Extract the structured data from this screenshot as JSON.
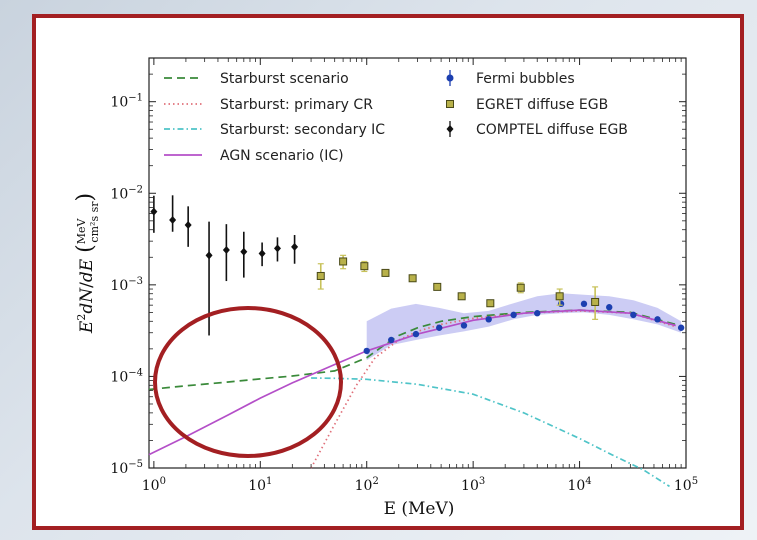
{
  "chart_data": {
    "type": "scatter",
    "xlabel": "E (MeV)",
    "ylabel": "E^2 dN/dE (MeV / cm^2 s sr)",
    "x_scale": "log",
    "y_scale": "log",
    "xlim": [
      0.9,
      100000
    ],
    "ylim": [
      1e-05,
      0.3
    ],
    "x_ticks": [
      "10^0",
      "10^1",
      "10^2",
      "10^3",
      "10^4",
      "10^5"
    ],
    "y_ticks": [
      "10^-5",
      "10^-4",
      "10^-3",
      "10^-2",
      "10^-1"
    ],
    "grid": false,
    "legend_position": "top",
    "series": [
      {
        "name": "Starburst scenario",
        "kind": "line",
        "style": "dashed",
        "color": "#3a8a3a",
        "x": [
          0.9,
          2,
          5,
          10,
          20,
          50,
          100,
          150,
          200,
          300,
          500,
          1000,
          3000,
          10000,
          30000,
          80000
        ],
        "y": [
          7.2e-05,
          7.9e-05,
          8.7e-05,
          9.4e-05,
          0.000101,
          0.000115,
          0.00016,
          0.000225,
          0.00028,
          0.00034,
          0.0004,
          0.00045,
          0.0005,
          0.00053,
          0.0005,
          0.00037
        ]
      },
      {
        "name": "Starburst: primary CR",
        "kind": "line",
        "style": "dotted",
        "color": "#e0707a",
        "x": [
          30,
          50,
          80,
          120,
          200,
          300,
          500,
          1000,
          3000,
          10000,
          30000,
          80000
        ],
        "y": [
          1e-05,
          3e-05,
          8e-05,
          0.00016,
          0.00025,
          0.00031,
          0.00037,
          0.00043,
          0.00049,
          0.00052,
          0.00049,
          0.00035
        ]
      },
      {
        "name": "Starburst: secondary IC",
        "kind": "line",
        "style": "dashdot",
        "color": "#4fc4c8",
        "x": [
          30,
          50,
          100,
          300,
          1000,
          3000,
          10000,
          20000,
          40000,
          70000
        ],
        "y": [
          9.6e-05,
          9.55e-05,
          9.3e-05,
          8.2e-05,
          6.4e-05,
          4e-05,
          2.1e-05,
          1.4e-05,
          9.5e-06,
          6.3e-06
        ]
      },
      {
        "name": "AGN scenario (IC)",
        "kind": "line",
        "style": "solid",
        "color": "#b44fc8",
        "x": [
          0.9,
          2,
          5,
          10,
          20,
          50,
          100,
          300,
          1000,
          3000,
          10000,
          30000,
          80000
        ],
        "y": [
          1.4e-05,
          2.2e-05,
          3.8e-05,
          5.8e-05,
          8.5e-05,
          0.000135,
          0.00019,
          0.00029,
          0.00041,
          0.00049,
          0.00053,
          0.00049,
          0.00036
        ]
      },
      {
        "name": "Fermi bubbles",
        "kind": "points",
        "marker": "circle",
        "color": "#1c3fb0",
        "x": [
          100,
          170,
          290,
          480,
          820,
          1400,
          2400,
          4000,
          6700,
          11000,
          19000,
          32000,
          54000,
          90000
        ],
        "y": [
          0.00019,
          0.00025,
          0.00029,
          0.00034,
          0.00036,
          0.00042,
          0.00047,
          0.00049,
          0.00062,
          0.00062,
          0.00057,
          0.00047,
          0.00042,
          0.00034
        ],
        "band_low": [
          0.00015,
          0.00022,
          0.00025,
          0.00028,
          0.00031,
          0.00035,
          0.00042,
          0.00047,
          0.00049,
          0.0005,
          0.00047,
          0.00042,
          0.00037,
          0.0003
        ],
        "band_high": [
          0.0004,
          0.00055,
          0.00062,
          0.00056,
          0.00049,
          0.00052,
          0.00063,
          0.00075,
          0.00081,
          0.00078,
          0.00075,
          0.00068,
          0.00056,
          0.0004
        ]
      },
      {
        "name": "EGRET diffuse EGB",
        "kind": "points",
        "marker": "square",
        "color": "#b8b14a",
        "x": [
          37,
          60,
          95,
          150,
          270,
          460,
          780,
          1450,
          2800,
          6500,
          14000
        ],
        "y": [
          0.00125,
          0.0018,
          0.0016,
          0.00135,
          0.00118,
          0.00095,
          0.00075,
          0.00063,
          0.00093,
          0.00075,
          0.00065
        ],
        "y_err_low": [
          0.0009,
          0.0015,
          0.0014,
          0.00125,
          0.0011,
          0.00088,
          0.0007,
          0.00058,
          0.00082,
          0.0006,
          0.00042
        ],
        "y_err_high": [
          0.0017,
          0.0021,
          0.0018,
          0.00145,
          0.00126,
          0.00102,
          0.0008,
          0.00068,
          0.00105,
          0.0009,
          0.00095
        ]
      },
      {
        "name": "COMPTEL diffuse EGB",
        "kind": "points",
        "marker": "diamond",
        "color": "#111111",
        "x": [
          1,
          1.5,
          2.1,
          3.3,
          4.8,
          7,
          10.4,
          14.5,
          21
        ],
        "y": [
          0.0063,
          0.0051,
          0.0045,
          0.0021,
          0.0024,
          0.0023,
          0.0022,
          0.0025,
          0.0026
        ],
        "y_err_low": [
          0.0037,
          0.0038,
          0.0026,
          0.00028,
          0.0011,
          0.0012,
          0.0016,
          0.0018,
          0.0017
        ],
        "y_err_high": [
          0.0094,
          0.0095,
          0.0072,
          0.0049,
          0.0046,
          0.0038,
          0.0029,
          0.0033,
          0.0035
        ]
      }
    ],
    "annotations": [
      {
        "type": "ellipse",
        "color": "#a31f22",
        "x_center": 6,
        "y_center": 9.5e-05,
        "x_span": [
          1.1,
          40
        ],
        "y_span": [
          2e-05,
          0.00035
        ]
      }
    ]
  }
}
